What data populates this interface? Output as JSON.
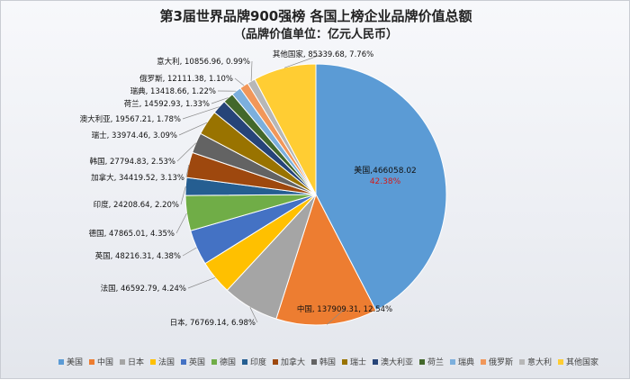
{
  "chart_data": {
    "type": "pie",
    "title": "第3届世界品牌900强榜 各国上榜企业品牌价值总额",
    "subtitle": "（品牌价值单位：亿元人民币）",
    "legend_position": "bottom",
    "slices": [
      {
        "name": "美国",
        "value": 466058.02,
        "percent": "42.38%",
        "color": "#5b9bd5"
      },
      {
        "name": "中国",
        "value": 137909.31,
        "percent": "12.54%",
        "color": "#ed7d31"
      },
      {
        "name": "日本",
        "value": 76769.14,
        "percent": "6.98%",
        "color": "#a5a5a5"
      },
      {
        "name": "法国",
        "value": 46592.79,
        "percent": "4.24%",
        "color": "#ffc000"
      },
      {
        "name": "英国",
        "value": 48216.31,
        "percent": "4.38%",
        "color": "#4472c4"
      },
      {
        "name": "德国",
        "value": 47865.01,
        "percent": "4.35%",
        "color": "#70ad47"
      },
      {
        "name": "印度",
        "value": 24208.64,
        "percent": "2.20%",
        "color": "#255e91"
      },
      {
        "name": "加拿大",
        "value": 34419.52,
        "percent": "3.13%",
        "color": "#9e480e"
      },
      {
        "name": "韩国",
        "value": 27794.83,
        "percent": "2.53%",
        "color": "#636363"
      },
      {
        "name": "瑞士",
        "value": 33974.46,
        "percent": "3.09%",
        "color": "#997300"
      },
      {
        "name": "澳大利亚",
        "value": 19567.21,
        "percent": "1.78%",
        "color": "#264478"
      },
      {
        "name": "荷兰",
        "value": 14592.93,
        "percent": "1.33%",
        "color": "#43682b"
      },
      {
        "name": "瑞典",
        "value": 13418.66,
        "percent": "1.22%",
        "color": "#7cafdd"
      },
      {
        "name": "俄罗斯",
        "value": 12111.38,
        "percent": "1.10%",
        "color": "#f1975a"
      },
      {
        "name": "意大利",
        "value": 10856.96,
        "percent": "0.99%",
        "color": "#b7b7b7"
      },
      {
        "name": "其他国家",
        "value": 85339.68,
        "percent": "7.76%",
        "color": "#ffcd33"
      }
    ]
  }
}
